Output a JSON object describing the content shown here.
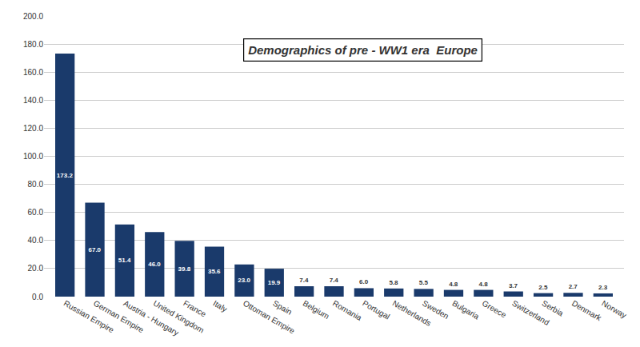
{
  "chart_data": {
    "type": "bar",
    "title": "Demographics of pre - WW1 era  Europe",
    "categories": [
      "Russian Empire",
      "German Empire",
      "Austria - Hungary",
      "United Kingdom",
      "France",
      "Italy",
      "Ottoman Empire",
      "Spain",
      "Belgium",
      "Romania",
      "Portugal",
      "Netherlands",
      "Sweden",
      "Bulgaria",
      "Greece",
      "Switzerland",
      "Serbia",
      "Denmark",
      "Norway"
    ],
    "values": [
      173.2,
      67.0,
      51.4,
      46.0,
      39.8,
      35.6,
      23.0,
      19.9,
      7.4,
      7.4,
      6.0,
      5.8,
      5.5,
      4.8,
      4.8,
      3.7,
      2.5,
      2.7,
      2.3
    ],
    "value_labels": [
      "173.2",
      "67.0",
      "51.4",
      "46.0",
      "39.8",
      "35.6",
      "23.0",
      "19.9",
      "7.4",
      "7.4",
      "6.0",
      "5.8",
      "5.5",
      "4.8",
      "4.8",
      "3.7",
      "2.5",
      "2.7",
      "2.3"
    ],
    "data_labels": true,
    "color": "#1a3a6b",
    "ylim": [
      0,
      200
    ],
    "yticks": [
      {
        "value": 0,
        "label": "0.0"
      },
      {
        "value": 20,
        "label": "20.0"
      },
      {
        "value": 40,
        "label": "40.0"
      },
      {
        "value": 60,
        "label": "60.0"
      },
      {
        "value": 80,
        "label": "80.0"
      },
      {
        "value": 100,
        "label": "100.0"
      },
      {
        "value": 120,
        "label": "120.0"
      },
      {
        "value": 140,
        "label": "140.0"
      },
      {
        "value": 160,
        "label": "160.0"
      },
      {
        "value": 180,
        "label": "180.0"
      },
      {
        "value": 200,
        "label": "200.0"
      }
    ],
    "grid": true
  }
}
